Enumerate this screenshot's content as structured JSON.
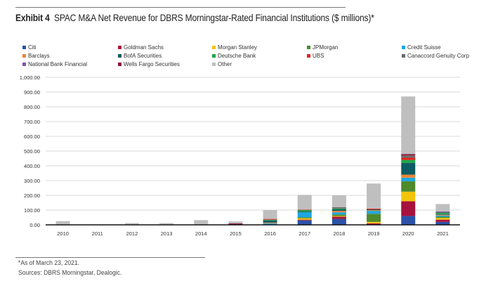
{
  "header": {
    "exhibit": "Exhibit 4",
    "title": "SPAC M&A Net Revenue for DBRS Morningstar-Rated Financial Institutions ($ millions)*"
  },
  "footer": {
    "note": "*As of March 23, 2021.",
    "sources": "Sources: DBRS Morningstar, Dealogic."
  },
  "chart_data": {
    "type": "bar",
    "stacked": true,
    "title": "SPAC M&A Net Revenue for DBRS Morningstar-Rated Financial Institutions ($ millions)*",
    "xlabel": "",
    "ylabel": "",
    "ylim": [
      0,
      1000
    ],
    "yticks": [
      0,
      100,
      200,
      300,
      400,
      500,
      600,
      700,
      800,
      900,
      1000
    ],
    "ytick_labels": [
      "0.00",
      "100.00",
      "200.00",
      "300.00",
      "400.00",
      "500.00",
      "600.00",
      "700.00",
      "800.00",
      "900.00",
      "1,000.00"
    ],
    "grid": true,
    "legend_position": "top",
    "categories": [
      "2010",
      "2011",
      "2012",
      "2013",
      "2014",
      "2015",
      "2016",
      "2017",
      "2018",
      "2019",
      "2020",
      "2021"
    ],
    "series": [
      {
        "name": "Citi",
        "color": "#2a52a8",
        "values": [
          0,
          0,
          0,
          0,
          0,
          0,
          0,
          30,
          40,
          0,
          60,
          20
        ]
      },
      {
        "name": "Goldman Sachs",
        "color": "#a8123e",
        "values": [
          0,
          0,
          0,
          0,
          0,
          3,
          0,
          5,
          15,
          10,
          100,
          15
        ]
      },
      {
        "name": "Morgan Stanley",
        "color": "#f2c40c",
        "values": [
          0,
          0,
          0,
          0,
          0,
          0,
          0,
          10,
          5,
          10,
          65,
          12
        ]
      },
      {
        "name": "JPMorgan",
        "color": "#4f8a2b",
        "values": [
          0,
          0,
          0,
          0,
          0,
          0,
          0,
          5,
          10,
          55,
          70,
          8
        ]
      },
      {
        "name": "Credit Suisse",
        "color": "#1ea7e1",
        "values": [
          0,
          0,
          0,
          0,
          0,
          0,
          10,
          35,
          15,
          20,
          25,
          8
        ]
      },
      {
        "name": "Barclays",
        "color": "#ee8432",
        "values": [
          0,
          0,
          0,
          0,
          0,
          0,
          5,
          0,
          10,
          5,
          20,
          5
        ]
      },
      {
        "name": "BofA Securities",
        "color": "#0d5c63",
        "values": [
          0,
          0,
          0,
          0,
          0,
          0,
          15,
          5,
          10,
          5,
          80,
          5
        ]
      },
      {
        "name": "Deutsche Bank",
        "color": "#1ea64a",
        "values": [
          0,
          0,
          0,
          0,
          0,
          0,
          5,
          10,
          5,
          0,
          20,
          8
        ]
      },
      {
        "name": "UBS",
        "color": "#e8211d",
        "values": [
          0,
          0,
          0,
          0,
          0,
          0,
          5,
          3,
          0,
          5,
          15,
          0
        ]
      },
      {
        "name": "Canaccord Genuity Corp",
        "color": "#6b6b6b",
        "values": [
          0,
          0,
          0,
          0,
          0,
          0,
          0,
          0,
          10,
          0,
          15,
          5
        ]
      },
      {
        "name": "National Bank Financial",
        "color": "#7b56a6",
        "values": [
          0,
          0,
          0,
          0,
          0,
          0,
          0,
          0,
          0,
          0,
          0,
          5
        ]
      },
      {
        "name": "Wells Fargo Securities",
        "color": "#8e1538",
        "values": [
          0,
          0,
          0,
          0,
          0,
          7,
          0,
          0,
          0,
          0,
          10,
          0
        ]
      },
      {
        "name": "Other",
        "color": "#bfbfbf",
        "values": [
          25,
          2,
          12,
          12,
          32,
          13,
          60,
          100,
          80,
          170,
          390,
          50
        ]
      }
    ]
  }
}
